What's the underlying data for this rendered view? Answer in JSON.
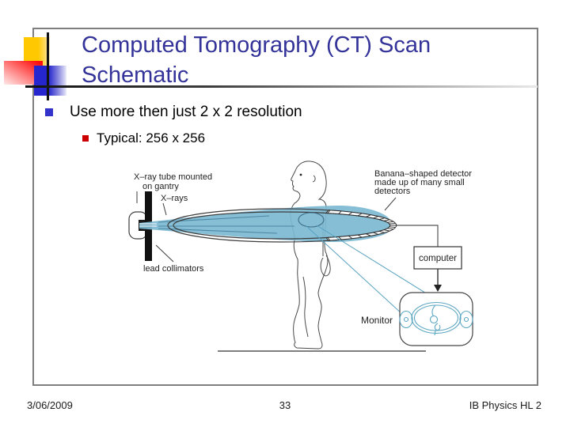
{
  "slide": {
    "title": "Computed Tomography (CT) Scan Schematic",
    "bullets": [
      {
        "level": 1,
        "text": "Use more then just 2 x 2 resolution"
      },
      {
        "level": 2,
        "text": "Typical: 256 x 256"
      }
    ],
    "footer": {
      "date": "3/06/2009",
      "page": "33",
      "course": "IB Physics HL 2"
    }
  },
  "diagram": {
    "labels": {
      "tube_line1": "X–ray tube mounted",
      "tube_line2": "on gantry",
      "xrays": "X–rays",
      "collimators": "lead collimators",
      "detector_line1": "Banana–shaped detector",
      "detector_line2": "made up of many small",
      "detector_line3": "detectors",
      "computer": "computer",
      "monitor": "Monitor"
    },
    "colors": {
      "title_blue": "#333399",
      "bullet_blue": "#3333cc",
      "bullet_red": "#cc0000",
      "beam_fill": "#7cb8d3",
      "diagram_line": "#3d3d3d",
      "signal_blue": "#58a2c0",
      "frame_gray": "#7f7f7f"
    }
  }
}
